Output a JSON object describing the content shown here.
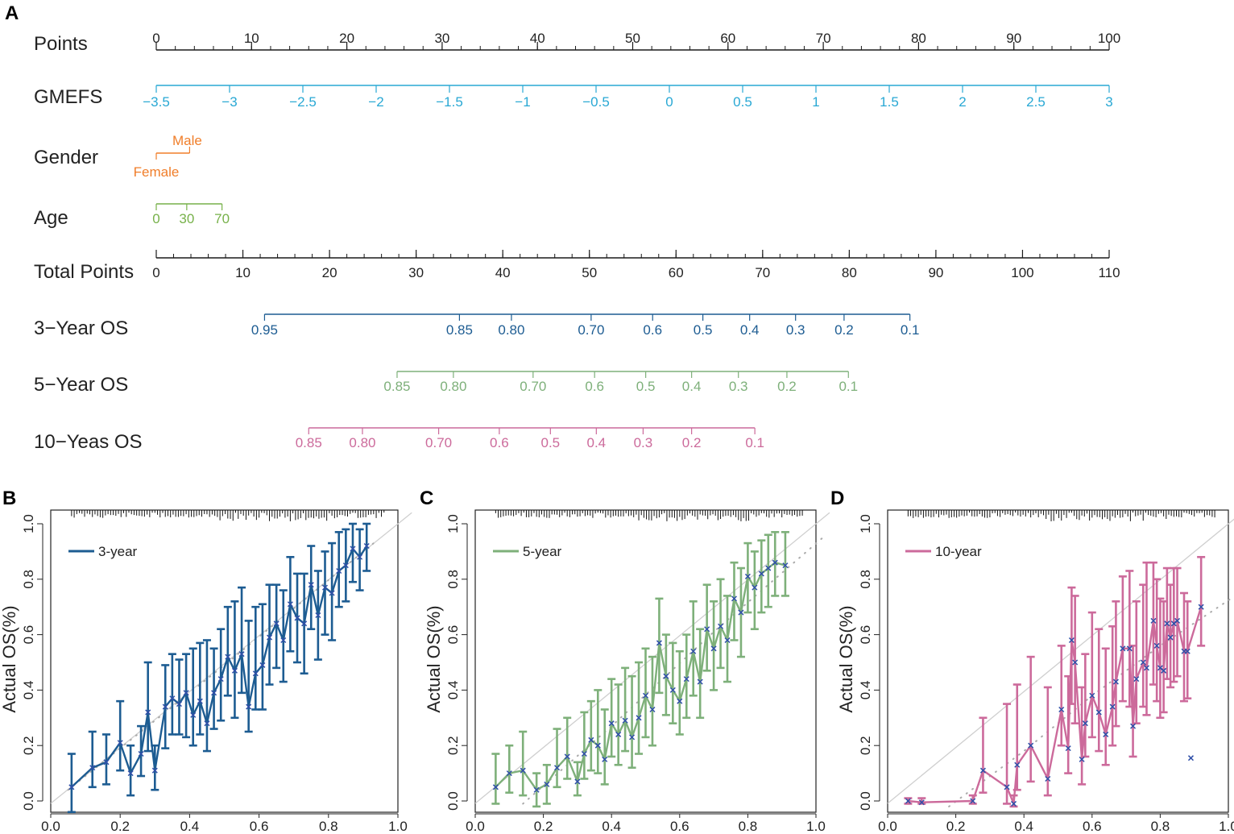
{
  "panel_labels": {
    "A": "A",
    "B": "B",
    "C": "C",
    "D": "D"
  },
  "chart_data": [
    {
      "type": "nomogram",
      "panel": "A",
      "rows": [
        {
          "key": "points",
          "label": "Points",
          "color": "#1a1a1a",
          "range": [
            0,
            100
          ],
          "ticks": [
            {
              "v": 0,
              "t": "0"
            },
            {
              "v": 10,
              "t": "10"
            },
            {
              "v": 20,
              "t": "20"
            },
            {
              "v": 30,
              "t": "30"
            },
            {
              "v": 40,
              "t": "40"
            },
            {
              "v": 50,
              "t": "50"
            },
            {
              "v": 60,
              "t": "60"
            },
            {
              "v": 70,
              "t": "70"
            },
            {
              "v": 80,
              "t": "80"
            },
            {
              "v": 90,
              "t": "90"
            },
            {
              "v": 100,
              "t": "100"
            }
          ],
          "minor_step": 2
        },
        {
          "key": "gmefs",
          "label": "GMEFS",
          "color": "#29a8d4",
          "range": [
            -3.5,
            3
          ],
          "ticks": [
            {
              "v": -3.5,
              "t": "−3.5"
            },
            {
              "v": -3,
              "t": "−3"
            },
            {
              "v": -2.5,
              "t": "−2.5"
            },
            {
              "v": -2,
              "t": "−2"
            },
            {
              "v": -1.5,
              "t": "−1.5"
            },
            {
              "v": -1,
              "t": "−1"
            },
            {
              "v": -0.5,
              "t": "−0.5"
            },
            {
              "v": 0,
              "t": "0"
            },
            {
              "v": 0.5,
              "t": "0.5"
            },
            {
              "v": 1,
              "t": "1"
            },
            {
              "v": 1.5,
              "t": "1.5"
            },
            {
              "v": 2,
              "t": "2"
            },
            {
              "v": 2.5,
              "t": "2.5"
            },
            {
              "v": 3,
              "t": "3"
            }
          ]
        },
        {
          "key": "gender",
          "label": "Gender",
          "color": "#f07e2a",
          "ticks": [
            {
              "points": 0,
              "t": "Female",
              "side": "below"
            },
            {
              "points": 3.5,
              "t": "Male",
              "side": "above"
            }
          ]
        },
        {
          "key": "age",
          "label": "Age",
          "color": "#77b14a",
          "ticks": [
            {
              "points": 0,
              "t": "0"
            },
            {
              "points": 3.2,
              "t": "30"
            },
            {
              "points": 6.9,
              "t": "70"
            }
          ]
        },
        {
          "key": "total",
          "label": "Total Points",
          "color": "#1a1a1a",
          "range": [
            0,
            110
          ],
          "ticks": [
            {
              "v": 0,
              "t": "0"
            },
            {
              "v": 10,
              "t": "10"
            },
            {
              "v": 20,
              "t": "20"
            },
            {
              "v": 30,
              "t": "30"
            },
            {
              "v": 40,
              "t": "40"
            },
            {
              "v": 50,
              "t": "50"
            },
            {
              "v": 60,
              "t": "60"
            },
            {
              "v": 70,
              "t": "70"
            },
            {
              "v": 80,
              "t": "80"
            },
            {
              "v": 90,
              "t": "90"
            },
            {
              "v": 100,
              "t": "100"
            },
            {
              "v": 110,
              "t": "110"
            }
          ],
          "minor_step": 2
        },
        {
          "key": "os3",
          "label": "3−Year OS",
          "color": "#1d5c92",
          "ticks": [
            {
              "total": 12.5,
              "t": "0.95"
            },
            {
              "total": 35.0,
              "t": "0.85"
            },
            {
              "total": 41.0,
              "t": "0.80"
            },
            {
              "total": 50.2,
              "t": "0.70"
            },
            {
              "total": 57.3,
              "t": "0.6"
            },
            {
              "total": 63.1,
              "t": "0.5"
            },
            {
              "total": 68.5,
              "t": "0.4"
            },
            {
              "total": 73.8,
              "t": "0.3"
            },
            {
              "total": 79.4,
              "t": "0.2"
            },
            {
              "total": 87.0,
              "t": "0.1"
            }
          ]
        },
        {
          "key": "os5",
          "label": "5−Year OS",
          "color": "#7eb07a",
          "ticks": [
            {
              "total": 27.8,
              "t": "0.85"
            },
            {
              "total": 34.3,
              "t": "0.80"
            },
            {
              "total": 43.5,
              "t": "0.70"
            },
            {
              "total": 50.6,
              "t": "0.6"
            },
            {
              "total": 56.5,
              "t": "0.5"
            },
            {
              "total": 61.8,
              "t": "0.4"
            },
            {
              "total": 67.2,
              "t": "0.3"
            },
            {
              "total": 72.8,
              "t": "0.2"
            },
            {
              "total": 79.9,
              "t": "0.1"
            }
          ]
        },
        {
          "key": "os10",
          "label": "10−Yeas OS",
          "color": "#cc6a9b",
          "ticks": [
            {
              "total": 17.6,
              "t": "0.85"
            },
            {
              "total": 23.8,
              "t": "0.80"
            },
            {
              "total": 32.6,
              "t": "0.70"
            },
            {
              "total": 39.6,
              "t": "0.6"
            },
            {
              "total": 45.5,
              "t": "0.5"
            },
            {
              "total": 50.8,
              "t": "0.4"
            },
            {
              "total": 56.2,
              "t": "0.3"
            },
            {
              "total": 61.8,
              "t": "0.2"
            },
            {
              "total": 69.1,
              "t": "0.1"
            }
          ]
        }
      ]
    },
    {
      "type": "calibration",
      "panel": "B",
      "series_name": "3-year",
      "color": "#1d5c92",
      "ylabel": "Actual OS(%)",
      "xlim": [
        0,
        1
      ],
      "ylim": [
        0,
        1
      ],
      "xticks": [
        "0.0",
        "0.2",
        "0.4",
        "0.6",
        "0.8",
        "1.0"
      ],
      "yticks": [
        "0.0",
        "0.2",
        "0.4",
        "0.6",
        "0.8",
        "1.0"
      ],
      "points": [
        [
          0.06,
          0.05,
          -0.04,
          0.17
        ],
        [
          0.12,
          0.12,
          0.05,
          0.25
        ],
        [
          0.16,
          0.14,
          0.06,
          0.24
        ],
        [
          0.2,
          0.21,
          0.11,
          0.36
        ],
        [
          0.23,
          0.1,
          0.02,
          0.2
        ],
        [
          0.26,
          0.17,
          0.09,
          0.27
        ],
        [
          0.28,
          0.32,
          0.18,
          0.5
        ],
        [
          0.3,
          0.11,
          0.04,
          0.2
        ],
        [
          0.33,
          0.34,
          0.19,
          0.49
        ],
        [
          0.35,
          0.37,
          0.24,
          0.53
        ],
        [
          0.37,
          0.35,
          0.24,
          0.51
        ],
        [
          0.39,
          0.39,
          0.23,
          0.53
        ],
        [
          0.41,
          0.31,
          0.2,
          0.55
        ],
        [
          0.43,
          0.36,
          0.24,
          0.57
        ],
        [
          0.45,
          0.28,
          0.18,
          0.58
        ],
        [
          0.47,
          0.39,
          0.26,
          0.55
        ],
        [
          0.49,
          0.44,
          0.29,
          0.62
        ],
        [
          0.51,
          0.52,
          0.38,
          0.7
        ],
        [
          0.53,
          0.47,
          0.3,
          0.72
        ],
        [
          0.55,
          0.53,
          0.39,
          0.77
        ],
        [
          0.57,
          0.34,
          0.25,
          0.65
        ],
        [
          0.59,
          0.46,
          0.33,
          0.7
        ],
        [
          0.61,
          0.49,
          0.33,
          0.71
        ],
        [
          0.63,
          0.59,
          0.42,
          0.78
        ],
        [
          0.65,
          0.64,
          0.48,
          0.78
        ],
        [
          0.67,
          0.58,
          0.43,
          0.76
        ],
        [
          0.69,
          0.71,
          0.54,
          0.88
        ],
        [
          0.71,
          0.66,
          0.5,
          0.82
        ],
        [
          0.73,
          0.64,
          0.46,
          0.82
        ],
        [
          0.75,
          0.78,
          0.62,
          0.92
        ],
        [
          0.77,
          0.67,
          0.51,
          0.83
        ],
        [
          0.79,
          0.77,
          0.6,
          0.9
        ],
        [
          0.81,
          0.75,
          0.58,
          0.93
        ],
        [
          0.83,
          0.83,
          0.7,
          0.97
        ],
        [
          0.85,
          0.85,
          0.72,
          0.98
        ],
        [
          0.87,
          0.91,
          0.79,
          1.0
        ],
        [
          0.89,
          0.88,
          0.76,
          0.98
        ],
        [
          0.91,
          0.92,
          0.83,
          1.0
        ]
      ],
      "rug": true
    },
    {
      "type": "calibration",
      "panel": "C",
      "series_name": "5-year",
      "color": "#7eb07a",
      "ylabel": "Actual OS(%)",
      "xlim": [
        0,
        1
      ],
      "ylim": [
        0,
        1
      ],
      "xticks": [
        "0.0",
        "0.2",
        "0.4",
        "0.6",
        "0.8",
        "1.0"
      ],
      "yticks": [
        "0.0",
        "0.2",
        "0.4",
        "0.6",
        "0.8",
        "1.0"
      ],
      "points": [
        [
          0.06,
          0.05,
          -0.01,
          0.17
        ],
        [
          0.1,
          0.1,
          0.03,
          0.2
        ],
        [
          0.14,
          0.11,
          0.02,
          0.25
        ],
        [
          0.18,
          0.04,
          -0.02,
          0.1
        ],
        [
          0.21,
          0.06,
          -0.01,
          0.13
        ],
        [
          0.24,
          0.12,
          0.05,
          0.26
        ],
        [
          0.27,
          0.16,
          0.08,
          0.3
        ],
        [
          0.3,
          0.07,
          0.02,
          0.14
        ],
        [
          0.32,
          0.17,
          0.08,
          0.32
        ],
        [
          0.34,
          0.22,
          0.11,
          0.36
        ],
        [
          0.36,
          0.2,
          0.1,
          0.4
        ],
        [
          0.38,
          0.15,
          0.06,
          0.33
        ],
        [
          0.4,
          0.28,
          0.16,
          0.44
        ],
        [
          0.42,
          0.24,
          0.13,
          0.42
        ],
        [
          0.44,
          0.29,
          0.18,
          0.48
        ],
        [
          0.46,
          0.23,
          0.12,
          0.45
        ],
        [
          0.48,
          0.3,
          0.17,
          0.5
        ],
        [
          0.5,
          0.38,
          0.23,
          0.55
        ],
        [
          0.52,
          0.33,
          0.2,
          0.52
        ],
        [
          0.54,
          0.57,
          0.39,
          0.73
        ],
        [
          0.56,
          0.45,
          0.31,
          0.6
        ],
        [
          0.58,
          0.4,
          0.28,
          0.57
        ],
        [
          0.6,
          0.36,
          0.24,
          0.54
        ],
        [
          0.62,
          0.44,
          0.3,
          0.6
        ],
        [
          0.64,
          0.54,
          0.38,
          0.72
        ],
        [
          0.66,
          0.43,
          0.3,
          0.62
        ],
        [
          0.68,
          0.62,
          0.47,
          0.78
        ],
        [
          0.7,
          0.55,
          0.4,
          0.72
        ],
        [
          0.72,
          0.63,
          0.48,
          0.8
        ],
        [
          0.74,
          0.58,
          0.43,
          0.74
        ],
        [
          0.76,
          0.73,
          0.58,
          0.86
        ],
        [
          0.78,
          0.68,
          0.52,
          0.84
        ],
        [
          0.8,
          0.81,
          0.68,
          0.93
        ],
        [
          0.82,
          0.77,
          0.62,
          0.9
        ],
        [
          0.84,
          0.82,
          0.68,
          0.94
        ],
        [
          0.86,
          0.84,
          0.7,
          0.96
        ],
        [
          0.88,
          0.86,
          0.74,
          0.97
        ],
        [
          0.91,
          0.85,
          0.74,
          0.97
        ]
      ],
      "rug": true
    },
    {
      "type": "calibration",
      "panel": "D",
      "series_name": "10-year",
      "color": "#cc6a9b",
      "ylabel": "Actual OS(%)",
      "xlim": [
        0,
        1
      ],
      "ylim": [
        0,
        1
      ],
      "xticks": [
        "0.0",
        "0.2",
        "0.4",
        "0.6",
        "0.8",
        "1.0"
      ],
      "yticks": [
        "0.0",
        "0.2",
        "0.4",
        "0.6",
        "0.8",
        "1.0"
      ],
      "points": [
        [
          0.06,
          0.0,
          -0.01,
          0.01
        ],
        [
          0.1,
          -0.005,
          -0.01,
          0.01
        ],
        [
          0.25,
          0.0,
          -0.01,
          0.02
        ],
        [
          0.28,
          0.11,
          0.03,
          0.3
        ],
        [
          0.35,
          0.05,
          -0.01,
          0.35
        ],
        [
          0.37,
          -0.01,
          -0.02,
          0.02
        ],
        [
          0.38,
          0.13,
          0.04,
          0.42
        ],
        [
          0.42,
          0.2,
          0.07,
          0.52
        ],
        [
          0.47,
          0.08,
          0.02,
          0.41
        ],
        [
          0.51,
          0.33,
          0.2,
          0.56
        ],
        [
          0.53,
          0.19,
          0.1,
          0.45
        ],
        [
          0.54,
          0.58,
          0.35,
          0.77
        ],
        [
          0.55,
          0.5,
          0.28,
          0.74
        ],
        [
          0.57,
          0.15,
          0.06,
          0.41
        ],
        [
          0.58,
          0.28,
          0.16,
          0.53
        ],
        [
          0.6,
          0.38,
          0.23,
          0.68
        ],
        [
          0.62,
          0.32,
          0.18,
          0.62
        ],
        [
          0.64,
          0.24,
          0.13,
          0.55
        ],
        [
          0.66,
          0.34,
          0.2,
          0.63
        ],
        [
          0.67,
          0.43,
          0.27,
          0.72
        ],
        [
          0.69,
          0.55,
          0.36,
          0.81
        ],
        [
          0.71,
          0.55,
          0.34,
          0.83
        ],
        [
          0.72,
          0.27,
          0.16,
          0.56
        ],
        [
          0.73,
          0.44,
          0.28,
          0.72
        ],
        [
          0.75,
          0.5,
          0.34,
          0.78
        ],
        [
          0.76,
          0.48,
          0.31,
          0.86
        ],
        [
          0.78,
          0.65,
          0.42,
          0.86
        ],
        [
          0.79,
          0.56,
          0.36,
          0.8
        ],
        [
          0.8,
          0.48,
          0.3,
          0.73
        ],
        [
          0.81,
          0.47,
          0.32,
          0.72
        ],
        [
          0.82,
          0.64,
          0.44,
          0.84
        ],
        [
          0.83,
          0.59,
          0.41,
          0.78
        ],
        [
          0.84,
          0.64,
          0.43,
          0.84
        ],
        [
          0.85,
          0.65,
          0.45,
          0.84
        ],
        [
          0.87,
          0.54,
          0.36,
          0.75
        ],
        [
          0.88,
          0.54,
          0.37,
          0.72
        ],
        [
          0.92,
          0.7,
          0.56,
          0.88
        ]
      ],
      "outliers": [
        [
          0.89,
          0.155
        ]
      ],
      "rug": true
    }
  ]
}
